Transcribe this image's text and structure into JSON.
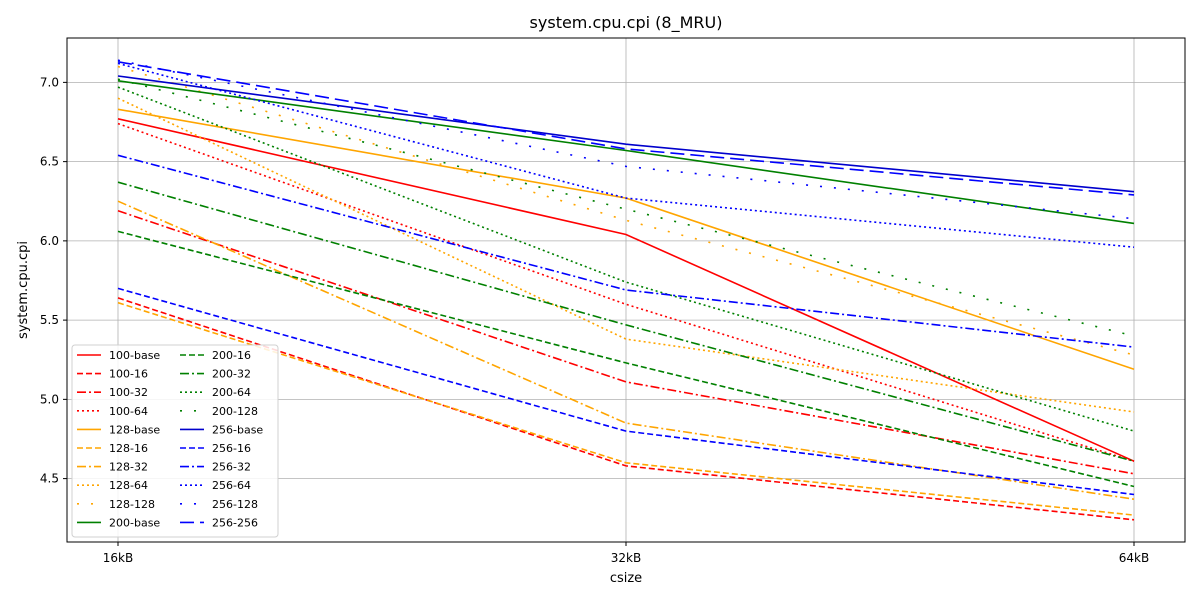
{
  "chart_data": {
    "type": "line",
    "title": "system.cpu.cpi (8_MRU)",
    "xlabel": "csize",
    "ylabel": "system.cpu.cpi",
    "categories": [
      "16kB",
      "32kB",
      "64kB"
    ],
    "ylim": [
      4.1,
      7.28
    ],
    "yticks": [
      4.5,
      5.0,
      5.5,
      6.0,
      6.5,
      7.0
    ],
    "ytick_labels": [
      "4.5",
      "5.0",
      "5.5",
      "6.0",
      "6.5",
      "7.0"
    ],
    "grid": true,
    "legend_placement": "lower-left",
    "legend_columns": 2,
    "series": [
      {
        "name": "100-base",
        "color": "#ff0000",
        "style": "solid",
        "values": [
          6.77,
          6.04,
          4.61
        ]
      },
      {
        "name": "100-16",
        "color": "#ff0000",
        "style": "dashed",
        "values": [
          5.64,
          4.58,
          4.24
        ]
      },
      {
        "name": "100-32",
        "color": "#ff0000",
        "style": "dashdot",
        "values": [
          6.19,
          5.11,
          4.53
        ]
      },
      {
        "name": "100-64",
        "color": "#ff0000",
        "style": "dotted",
        "values": [
          6.74,
          5.6,
          4.61
        ]
      },
      {
        "name": "128-base",
        "color": "#ffa500",
        "style": "solid",
        "values": [
          6.83,
          6.27,
          5.19
        ]
      },
      {
        "name": "128-16",
        "color": "#ffa500",
        "style": "dashed",
        "values": [
          5.61,
          4.6,
          4.27
        ]
      },
      {
        "name": "128-32",
        "color": "#ffa500",
        "style": "dashdot",
        "values": [
          6.25,
          4.85,
          4.37
        ]
      },
      {
        "name": "128-64",
        "color": "#ffa500",
        "style": "dotted",
        "values": [
          6.9,
          5.38,
          4.92
        ]
      },
      {
        "name": "128-128",
        "color": "#ffa500",
        "style": "looselydotted",
        "values": [
          7.1,
          6.13,
          5.28
        ]
      },
      {
        "name": "200-base",
        "color": "#008000",
        "style": "solid",
        "values": [
          7.01,
          6.57,
          6.11
        ]
      },
      {
        "name": "200-16",
        "color": "#008000",
        "style": "dashed",
        "values": [
          6.06,
          5.23,
          4.45
        ]
      },
      {
        "name": "200-32",
        "color": "#008000",
        "style": "dashdot",
        "values": [
          6.37,
          5.47,
          4.61
        ]
      },
      {
        "name": "200-64",
        "color": "#008000",
        "style": "dotted",
        "values": [
          6.97,
          5.74,
          4.8
        ]
      },
      {
        "name": "200-128",
        "color": "#008000",
        "style": "looselydotted",
        "values": [
          7.02,
          6.2,
          5.4
        ]
      },
      {
        "name": "256-base",
        "color": "#0000cc",
        "style": "solid",
        "values": [
          7.04,
          6.61,
          6.31
        ]
      },
      {
        "name": "256-16",
        "color": "#0000ff",
        "style": "dashed",
        "values": [
          5.7,
          4.8,
          4.4
        ]
      },
      {
        "name": "256-32",
        "color": "#0000ff",
        "style": "dashdot",
        "values": [
          6.54,
          5.69,
          5.33
        ]
      },
      {
        "name": "256-64",
        "color": "#0000ff",
        "style": "dotted",
        "values": [
          7.12,
          6.27,
          5.96
        ]
      },
      {
        "name": "256-128",
        "color": "#0000ff",
        "style": "looselydotted",
        "values": [
          7.14,
          6.47,
          6.14
        ]
      },
      {
        "name": "256-256",
        "color": "#0000ff",
        "style": "longdash",
        "values": [
          7.13,
          6.58,
          6.29
        ]
      }
    ]
  }
}
